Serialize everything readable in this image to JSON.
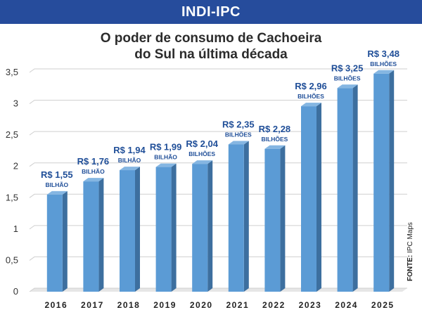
{
  "header": {
    "label": "INDI-IPC"
  },
  "source": {
    "prefix": "FONTE:",
    "text": "IPC Maps"
  },
  "colors": {
    "header_bg": "#264c9c",
    "bar_front": "#5b9bd5",
    "bar_side": "#3d6f9f",
    "bar_top": "#85b6e2",
    "label": "#1f4e98"
  },
  "chart_data": {
    "type": "bar",
    "title_lines": [
      "O poder de consumo de Cachoeira",
      "do Sul na última década"
    ],
    "categories": [
      "2016",
      "2017",
      "2018",
      "2019",
      "2020",
      "2021",
      "2022",
      "2023",
      "2024",
      "2025"
    ],
    "values": [
      1.55,
      1.76,
      1.94,
      1.99,
      2.04,
      2.35,
      2.28,
      2.96,
      3.25,
      3.48
    ],
    "value_labels": [
      "R$ 1,55",
      "R$ 1,76",
      "R$ 1,94",
      "R$ 1,99",
      "R$ 2,04",
      "R$ 2,35",
      "R$ 2,28",
      "R$ 2,96",
      "R$ 3,25",
      "R$ 3,48"
    ],
    "unit_labels": [
      "BILHÃO",
      "BILHÃO",
      "BILHÃO",
      "BILHÃO",
      "BILHÕES",
      "BILHÕES",
      "BILHÕES",
      "BILHÕES",
      "BILHÕES",
      "BILHÕES"
    ],
    "yticks": [
      "0",
      "0,5",
      "1",
      "1,5",
      "2",
      "2,5",
      "3",
      "3,5"
    ],
    "ylim": [
      0,
      3.5
    ],
    "grid": true
  }
}
